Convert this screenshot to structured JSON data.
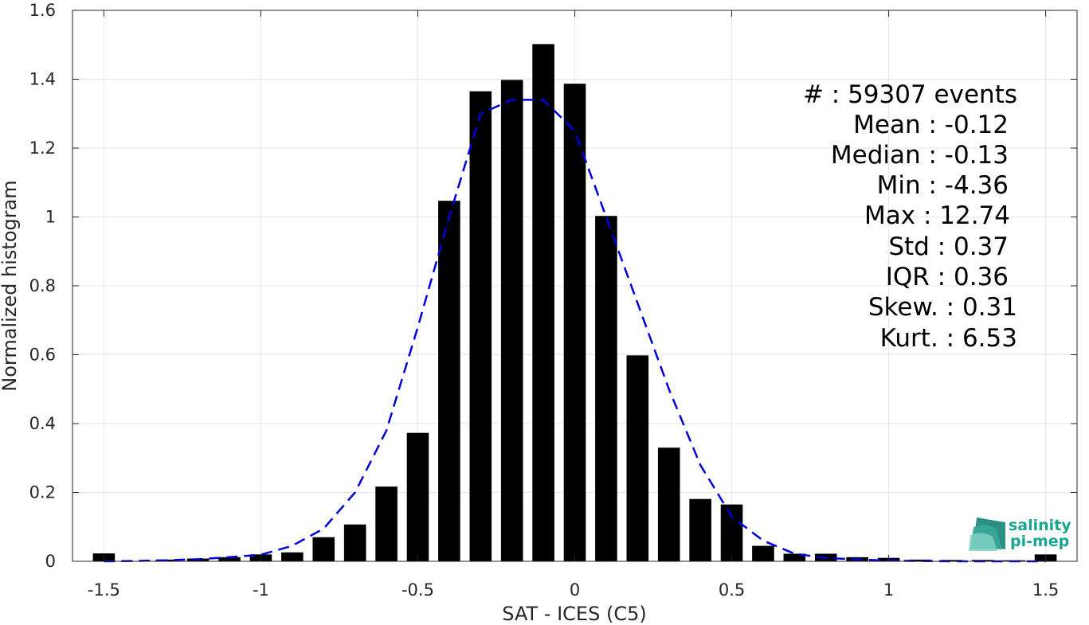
{
  "chart_data": {
    "type": "bar",
    "xlabel": "SAT - ICES (C5)",
    "ylabel": "Normalized histogram",
    "xlim": [
      -1.6,
      1.6
    ],
    "ylim": [
      0,
      1.6
    ],
    "xticks": [
      -1.5,
      -1,
      -0.5,
      0,
      0.5,
      1,
      1.5
    ],
    "xtick_labels": [
      "-1.5",
      "-1",
      "-0.5",
      "0",
      "0.5",
      "1",
      "1.5"
    ],
    "yticks": [
      0,
      0.2,
      0.4,
      0.6,
      0.8,
      1,
      1.2,
      1.4,
      1.6
    ],
    "ytick_labels": [
      "0",
      "0.2",
      "0.4",
      "0.6",
      "0.8",
      "1",
      "1.2",
      "1.4",
      "1.6"
    ],
    "grid": true,
    "bar_width": 0.07,
    "bar_color": "#000000",
    "x": [
      -1.5,
      -1.4,
      -1.3,
      -1.2,
      -1.1,
      -1.0,
      -0.9,
      -0.8,
      -0.7,
      -0.6,
      -0.5,
      -0.4,
      -0.3,
      -0.2,
      -0.1,
      0.0,
      0.1,
      0.2,
      0.3,
      0.4,
      0.5,
      0.6,
      0.7,
      0.8,
      0.9,
      1.0,
      1.1,
      1.2,
      1.3,
      1.4,
      1.5
    ],
    "values": [
      0.023,
      0.0,
      0.005,
      0.008,
      0.012,
      0.02,
      0.026,
      0.07,
      0.107,
      0.217,
      0.373,
      1.047,
      1.365,
      1.398,
      1.502,
      1.387,
      1.003,
      0.598,
      0.33,
      0.181,
      0.165,
      0.045,
      0.022,
      0.022,
      0.012,
      0.01,
      0.005,
      0.004,
      0.004,
      0.003,
      0.02
    ],
    "fit_curve": {
      "style": "dashed",
      "color": "#0000dd",
      "x": [
        -1.5,
        -1.4,
        -1.3,
        -1.2,
        -1.1,
        -1.0,
        -0.9,
        -0.8,
        -0.7,
        -0.6,
        -0.5,
        -0.4,
        -0.3,
        -0.2,
        -0.1,
        0.0,
        0.1,
        0.2,
        0.3,
        0.4,
        0.5,
        0.6,
        0.7,
        0.8,
        0.9,
        1.0,
        1.1,
        1.2,
        1.3,
        1.4,
        1.5
      ],
      "y": [
        0.0,
        0.001,
        0.003,
        0.006,
        0.012,
        0.019,
        0.045,
        0.095,
        0.2,
        0.38,
        0.68,
        1.0,
        1.3,
        1.34,
        1.34,
        1.25,
        1.0,
        0.75,
        0.5,
        0.28,
        0.13,
        0.06,
        0.022,
        0.01,
        0.005,
        0.002,
        0.001,
        0.0,
        0.0,
        0.0,
        0.0
      ]
    },
    "annotations": {
      "events_line": "#  : 59307 events",
      "mean_line": "Mean : -0.12",
      "median_line": "Median : -0.13",
      "min_line": "Min : -4.36",
      "max_line": "Max : 12.74",
      "std_line": "Std : 0.37",
      "iqr_line": "IQR : 0.36",
      "skew_line": "Skew. : 0.31",
      "kurt_line": "Kurt. : 6.53"
    }
  },
  "logo": {
    "line1": "salinity",
    "line2": "pi-mep",
    "color": "#1aa58f"
  }
}
